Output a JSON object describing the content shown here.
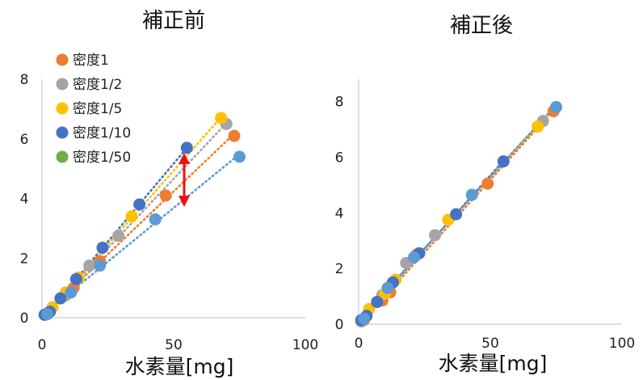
{
  "chart_data": [
    {
      "type": "scatter",
      "title": "補正前",
      "xlabel": "水素量[mg]",
      "ylabel": "",
      "xlim": [
        0,
        100
      ],
      "ylim": [
        0,
        8
      ],
      "x_ticks": [
        "0",
        "50",
        "100"
      ],
      "y_ticks": [
        "0",
        "2",
        "4",
        "6",
        "8"
      ],
      "grid": false,
      "legend_position": "top-left",
      "annotation": "red double-headed arrow between series near x=54",
      "series": [
        {
          "name": "密度1",
          "color": "#ED7D31",
          "points": [
            [
              2,
              0.15
            ],
            [
              9,
              0.8
            ],
            [
              12,
              1.0
            ],
            [
              22,
              1.9
            ],
            [
              47,
              4.1
            ],
            [
              73,
              6.1
            ]
          ]
        },
        {
          "name": "密度1/2",
          "color": "#A5A5A5",
          "points": [
            [
              1,
              0.1
            ],
            [
              9,
              0.75
            ],
            [
              18,
              1.75
            ],
            [
              29,
              2.75
            ],
            [
              70,
              6.5
            ]
          ]
        },
        {
          "name": "密度1/5",
          "color": "#FFC000",
          "points": [
            [
              4,
              0.35
            ],
            [
              9,
              0.85
            ],
            [
              14,
              1.35
            ],
            [
              34,
              3.4
            ],
            [
              68,
              6.7
            ]
          ]
        },
        {
          "name": "密度1/10",
          "color": "#4472C4",
          "points": [
            [
              1,
              0.1
            ],
            [
              3,
              0.2
            ],
            [
              7,
              0.65
            ],
            [
              13,
              1.3
            ],
            [
              23,
              2.35
            ],
            [
              37,
              3.8
            ],
            [
              55,
              5.7
            ]
          ]
        },
        {
          "name": "密度1/50",
          "color": "#70AD47",
          "points": []
        },
        {
          "name": "",
          "color": "#5B9BD5",
          "points": [
            [
              2,
              0.12
            ],
            [
              11,
              0.85
            ],
            [
              22,
              1.75
            ],
            [
              43,
              3.3
            ],
            [
              75,
              5.4
            ]
          ]
        }
      ],
      "trendline_series": [
        "密度1",
        "密度1/2",
        "密度1/5",
        "密度1/10",
        ""
      ]
    },
    {
      "type": "scatter",
      "title": "補正後",
      "xlabel": "水素量[mg]",
      "ylabel": "",
      "xlim": [
        0,
        100
      ],
      "ylim": [
        0,
        8.8
      ],
      "x_ticks": [
        "0",
        "50",
        "100"
      ],
      "y_ticks": [
        "0",
        "2",
        "4",
        "6",
        "8"
      ],
      "grid": false,
      "series": [
        {
          "name": "密度1",
          "color": "#ED7D31",
          "points": [
            [
              2,
              0.15
            ],
            [
              9,
              0.85
            ],
            [
              12,
              1.15
            ],
            [
              22,
              2.5
            ],
            [
              49,
              5.05
            ],
            [
              74,
              7.65
            ]
          ]
        },
        {
          "name": "密度1/2",
          "color": "#A5A5A5",
          "points": [
            [
              1,
              0.1
            ],
            [
              9,
              1.05
            ],
            [
              18,
              2.2
            ],
            [
              29,
              3.2
            ],
            [
              70,
              7.3
            ]
          ]
        },
        {
          "name": "密度1/5",
          "color": "#FFC000",
          "points": [
            [
              4,
              0.55
            ],
            [
              10,
              1.1
            ],
            [
              14,
              1.6
            ],
            [
              34,
              3.75
            ],
            [
              68,
              7.1
            ]
          ]
        },
        {
          "name": "密度1/10",
          "color": "#4472C4",
          "points": [
            [
              1,
              0.15
            ],
            [
              3,
              0.3
            ],
            [
              7,
              0.8
            ],
            [
              13,
              1.5
            ],
            [
              23,
              2.55
            ],
            [
              37,
              3.95
            ],
            [
              55,
              5.85
            ]
          ]
        },
        {
          "name": "",
          "color": "#5B9BD5",
          "points": [
            [
              2,
              0.2
            ],
            [
              11,
              1.3
            ],
            [
              21,
              2.4
            ],
            [
              43,
              4.65
            ],
            [
              75,
              7.8
            ]
          ]
        }
      ],
      "trendline_series": [
        "密度1",
        "密度1/2",
        "密度1/5",
        "密度1/10",
        ""
      ]
    }
  ]
}
